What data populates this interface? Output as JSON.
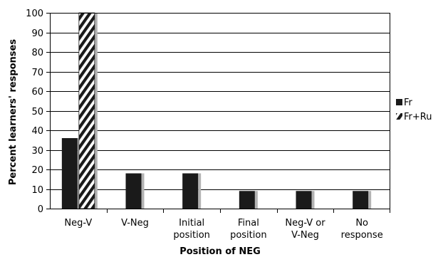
{
  "chart_data": {
    "type": "bar",
    "title": "",
    "xlabel": "Position of NEG",
    "ylabel": "Percent learners' responses",
    "ylim": [
      0,
      100
    ],
    "yticks": [
      0,
      10,
      20,
      30,
      40,
      50,
      60,
      70,
      80,
      90,
      100
    ],
    "categories": [
      [
        "Neg-V"
      ],
      [
        "V-Neg"
      ],
      [
        "Initial",
        "position"
      ],
      [
        "Final",
        "position"
      ],
      [
        "Neg-V or",
        "V-Neg"
      ],
      [
        "No",
        "response"
      ]
    ],
    "series": [
      {
        "name": "Fr",
        "values": [
          36,
          18,
          18,
          9,
          9,
          9
        ],
        "fill": "#1a1a1a",
        "pattern": "solid"
      },
      {
        "name": "Fr+Ru",
        "values": [
          100,
          0,
          0,
          0,
          0,
          0
        ],
        "fill": "#1a1a1a",
        "pattern": "diagonal-hatch"
      }
    ],
    "grid": true,
    "legend_position": "right",
    "colors": {
      "bar": "#1a1a1a",
      "shadow": "#b3b3b3",
      "grid": "#000000"
    }
  }
}
